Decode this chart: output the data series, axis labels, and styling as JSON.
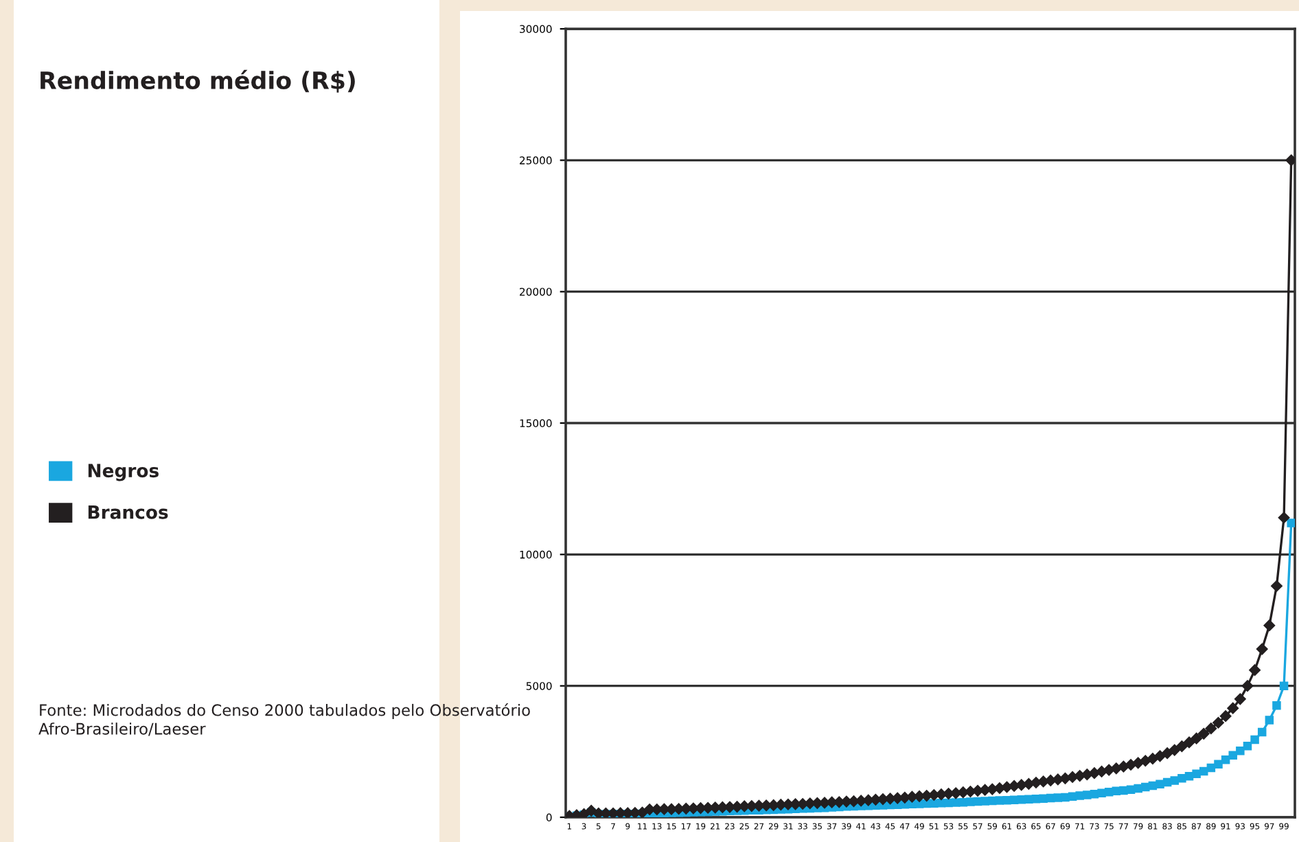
{
  "chart_data": {
    "type": "line",
    "title": "Rendimento médio (R$)",
    "categories": [
      "1",
      null,
      "3",
      null,
      "5",
      null,
      "7",
      null,
      "9",
      null,
      "11",
      null,
      "13",
      null,
      "15",
      null,
      "17",
      null,
      "19",
      null,
      "21",
      null,
      "23",
      null,
      "25",
      null,
      "27",
      null,
      "29",
      null,
      "31",
      null,
      "33",
      null,
      "35",
      null,
      "37",
      null,
      "39",
      null,
      "41",
      null,
      "43",
      null,
      "45",
      null,
      "47",
      null,
      "49",
      null,
      "51",
      null,
      "53",
      null,
      "55",
      null,
      "57",
      null,
      "59",
      null,
      "61",
      null,
      "63",
      null,
      "65",
      null,
      "67",
      null,
      "69",
      null,
      "71",
      null,
      "73",
      null,
      "75",
      null,
      "77",
      null,
      "79",
      null,
      "81",
      null,
      "83",
      null,
      "85",
      null,
      "87",
      null,
      "89",
      null,
      "91",
      null,
      "93",
      null,
      "95",
      null,
      "97",
      null,
      "99",
      null
    ],
    "series": [
      {
        "name": "Negros",
        "color": "#1aa7e0",
        "marker": "square",
        "values": [
          0,
          60,
          100,
          180,
          110,
          110,
          115,
          120,
          120,
          125,
          130,
          150,
          155,
          160,
          170,
          175,
          185,
          195,
          200,
          210,
          220,
          230,
          240,
          250,
          255,
          265,
          270,
          280,
          290,
          300,
          310,
          320,
          330,
          340,
          350,
          360,
          380,
          395,
          410,
          420,
          430,
          440,
          450,
          460,
          470,
          480,
          490,
          500,
          510,
          520,
          530,
          540,
          550,
          560,
          570,
          585,
          600,
          615,
          630,
          640,
          650,
          660,
          670,
          685,
          700,
          715,
          730,
          745,
          760,
          790,
          820,
          850,
          880,
          920,
          960,
          1000,
          1020,
          1050,
          1100,
          1150,
          1200,
          1260,
          1330,
          1400,
          1480,
          1560,
          1650,
          1750,
          1880,
          2020,
          2190,
          2360,
          2530,
          2710,
          2950,
          3240,
          3700,
          4250,
          5000,
          11200
        ]
      },
      {
        "name": "Brancos",
        "color": "#231f20",
        "marker": "diamond",
        "values": [
          50,
          80,
          120,
          250,
          150,
          150,
          150,
          160,
          160,
          170,
          180,
          300,
          300,
          310,
          310,
          320,
          330,
          340,
          350,
          360,
          370,
          380,
          390,
          400,
          420,
          430,
          440,
          450,
          460,
          480,
          490,
          500,
          510,
          530,
          540,
          550,
          570,
          580,
          600,
          610,
          630,
          650,
          670,
          690,
          710,
          730,
          750,
          780,
          800,
          820,
          850,
          870,
          900,
          920,
          950,
          980,
          1010,
          1040,
          1070,
          1110,
          1150,
          1190,
          1230,
          1270,
          1320,
          1360,
          1400,
          1440,
          1480,
          1530,
          1580,
          1630,
          1680,
          1740,
          1800,
          1860,
          1930,
          2000,
          2070,
          2150,
          2230,
          2330,
          2440,
          2560,
          2700,
          2850,
          3000,
          3180,
          3380,
          3600,
          3850,
          4150,
          4500,
          5000,
          5600,
          6400,
          7300,
          8800,
          11400,
          25000
        ]
      }
    ],
    "ylim": [
      0,
      30000
    ],
    "yticks": [
      0,
      5000,
      10000,
      15000,
      20000,
      25000,
      30000
    ],
    "grid": "y",
    "legend": "left",
    "annotations": [
      "Fonte: Microdados do Censo 2000 tabulados pelo Observatório Afro-Brasileiro/Laeser"
    ]
  }
}
